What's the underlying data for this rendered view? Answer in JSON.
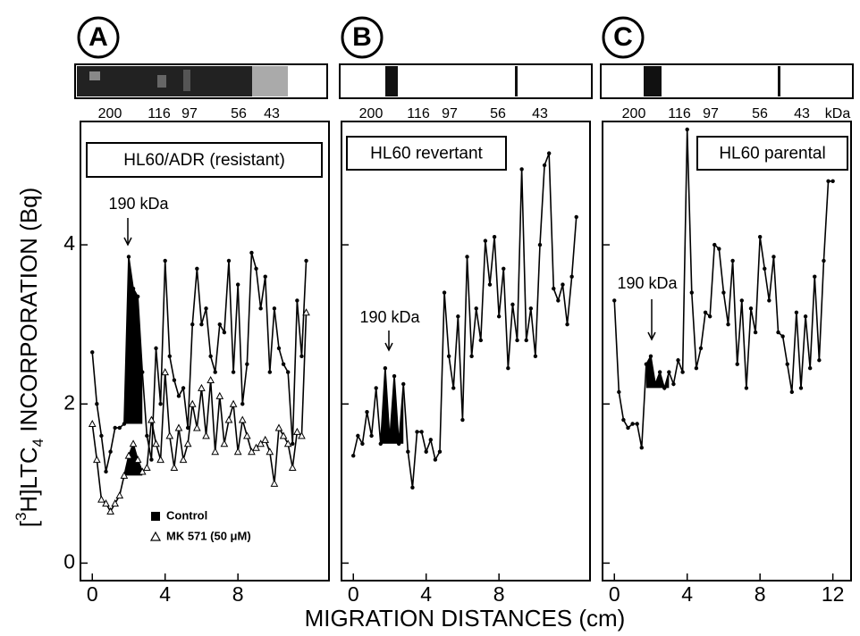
{
  "figure": {
    "x_label": "MIGRATION DISTANCES (cm)",
    "y_label": [
      "[",
      "3",
      "H]LTC",
      "4",
      " INCORPORATION (Bq)"
    ]
  },
  "chart_data": [
    {
      "type": "line",
      "panel_label": "A",
      "annotation": "HL60/ADR (resistant)",
      "arrow_label": "190 kDa",
      "marker_labels": [
        "200",
        "116",
        "97",
        "56",
        "43"
      ],
      "x": [
        0,
        0.25,
        0.5,
        0.75,
        1,
        1.25,
        1.5,
        1.75,
        2,
        2.25,
        2.5,
        2.75,
        3,
        3.25,
        3.5,
        3.75,
        4,
        4.25,
        4.5,
        4.75,
        5,
        5.25,
        5.5,
        5.75,
        6,
        6.25,
        6.5,
        6.75,
        7,
        7.25,
        7.5,
        7.75,
        8,
        8.25,
        8.5,
        8.75,
        9,
        9.25,
        9.5,
        9.75,
        10,
        10.25,
        10.5,
        10.75,
        11,
        11.25,
        11.5,
        11.75
      ],
      "series": [
        {
          "name": "Control",
          "color": "#000000",
          "marker": "circle",
          "values": [
            2.65,
            2.0,
            1.6,
            1.15,
            1.4,
            1.7,
            1.7,
            1.75,
            3.85,
            3.45,
            3.35,
            2.4,
            1.6,
            1.3,
            2.7,
            2.0,
            3.8,
            2.6,
            2.3,
            2.1,
            2.2,
            1.7,
            3.0,
            3.7,
            3.0,
            3.2,
            2.6,
            2.4,
            3.0,
            2.9,
            3.8,
            2.4,
            3.5,
            2.0,
            2.5,
            3.9,
            3.7,
            3.2,
            3.6,
            2.4,
            3.2,
            2.7,
            2.5,
            2.4,
            1.5,
            3.3,
            2.6,
            3.8
          ]
        },
        {
          "name": "MK 571 (50 μM)",
          "color": "#000000",
          "marker": "triangle",
          "values": [
            1.75,
            1.3,
            0.8,
            0.75,
            0.65,
            0.75,
            0.85,
            1.1,
            1.35,
            1.5,
            1.3,
            1.15,
            1.2,
            1.8,
            1.5,
            1.3,
            2.4,
            1.6,
            1.2,
            1.7,
            1.3,
            1.5,
            2.0,
            1.7,
            2.2,
            1.6,
            2.3,
            1.4,
            2.1,
            1.5,
            1.8,
            2.0,
            1.4,
            1.8,
            1.6,
            1.4,
            1.45,
            1.5,
            1.55,
            1.4,
            1.0,
            1.7,
            1.6,
            1.5,
            1.2,
            1.65,
            1.6,
            3.15
          ]
        }
      ],
      "shade_range": [
        1.75,
        2.75
      ],
      "xlim": [
        -0.65,
        13.0
      ],
      "ylim": [
        -0.22,
        5.55
      ],
      "xticks": [
        0,
        4,
        8
      ],
      "yticks": [
        0,
        2,
        4
      ],
      "ytick_labels": true,
      "legend": "bottom"
    },
    {
      "type": "line",
      "panel_label": "B",
      "annotation": "HL60 revertant",
      "arrow_label": "190 kDa",
      "marker_labels": [
        "200",
        "116",
        "97",
        "56",
        "43"
      ],
      "x": [
        0,
        0.25,
        0.5,
        0.75,
        1,
        1.25,
        1.5,
        1.75,
        2,
        2.25,
        2.5,
        2.75,
        3,
        3.25,
        3.5,
        3.75,
        4,
        4.25,
        4.5,
        4.75,
        5,
        5.25,
        5.5,
        5.75,
        6,
        6.25,
        6.5,
        6.75,
        7,
        7.25,
        7.5,
        7.75,
        8,
        8.25,
        8.5,
        8.75,
        9,
        9.25,
        9.5,
        9.75,
        10,
        10.25,
        10.5,
        10.75,
        11,
        11.25,
        11.5,
        11.75,
        12,
        12.25
      ],
      "series": [
        {
          "color": "#000000",
          "marker": "circle",
          "values": [
            1.35,
            1.6,
            1.5,
            1.9,
            1.6,
            2.2,
            1.5,
            2.45,
            1.55,
            2.35,
            1.5,
            2.25,
            1.4,
            0.95,
            1.65,
            1.65,
            1.4,
            1.55,
            1.3,
            1.4,
            3.4,
            2.6,
            2.2,
            3.1,
            1.8,
            3.85,
            2.6,
            3.2,
            2.8,
            4.05,
            3.5,
            4.1,
            3.1,
            3.7,
            2.45,
            3.25,
            2.8,
            4.95,
            2.8,
            3.2,
            2.6,
            4.0,
            5.0,
            5.15,
            3.45,
            3.3,
            3.5,
            3.0,
            3.6,
            4.35
          ]
        }
      ],
      "shade_range": [
        1.5,
        2.75
      ],
      "xlim": [
        -0.65,
        13.0
      ],
      "ylim": [
        -0.22,
        5.55
      ],
      "xticks": [
        0,
        4,
        8
      ],
      "yticks": [
        0,
        2,
        4
      ],
      "ytick_labels": false
    },
    {
      "type": "line",
      "panel_label": "C",
      "annotation": "HL60 parental",
      "arrow_label": "190 kDa",
      "marker_labels": [
        "200",
        "116",
        "97",
        "56",
        "43"
      ],
      "marker_unit": "kDa",
      "x": [
        0,
        0.25,
        0.5,
        0.75,
        1,
        1.25,
        1.5,
        1.75,
        2,
        2.25,
        2.5,
        2.75,
        3,
        3.25,
        3.5,
        3.75,
        4,
        4.25,
        4.5,
        4.75,
        5,
        5.25,
        5.5,
        5.75,
        6,
        6.25,
        6.5,
        6.75,
        7,
        7.25,
        7.5,
        7.75,
        8,
        8.25,
        8.5,
        8.75,
        9,
        9.25,
        9.5,
        9.75,
        10,
        10.25,
        10.5,
        10.75,
        11,
        11.25,
        11.5,
        11.75,
        12
      ],
      "series": [
        {
          "color": "#000000",
          "marker": "circle",
          "values": [
            3.3,
            2.15,
            1.8,
            1.7,
            1.75,
            1.75,
            1.45,
            2.5,
            2.6,
            2.25,
            2.4,
            2.2,
            2.4,
            2.25,
            2.55,
            2.4,
            5.45,
            3.4,
            2.45,
            2.7,
            3.15,
            3.1,
            4.0,
            3.95,
            3.4,
            3.0,
            3.8,
            2.5,
            3.3,
            2.2,
            3.2,
            2.9,
            4.1,
            3.7,
            3.3,
            3.85,
            2.9,
            2.85,
            2.5,
            2.15,
            3.15,
            2.2,
            3.1,
            2.45,
            3.6,
            2.55,
            3.8,
            4.8,
            4.8
          ]
        }
      ],
      "shade_range": [
        1.75,
        3.0
      ],
      "xlim": [
        -0.65,
        13.0
      ],
      "ylim": [
        -0.22,
        5.55
      ],
      "xticks": [
        0,
        4,
        8,
        12
      ],
      "yticks": [
        0,
        2,
        4
      ],
      "ytick_labels": false
    }
  ]
}
